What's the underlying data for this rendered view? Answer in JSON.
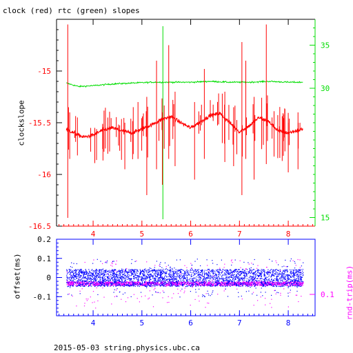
{
  "title": "clock (red) rtc (green) slopes",
  "footer": "2015-05-03 string.physics.ubc.ca",
  "colors": {
    "clock": "#ff0000",
    "rtc": "#00dd00",
    "offset": "#0000ff",
    "rndtrip": "#ff00ff",
    "axis_main": "#000000",
    "bottom_axis": "#0000ff"
  },
  "chart_data": [
    {
      "type": "line",
      "title": "clock (red) rtc (green) slopes",
      "ylabel": "clockslope",
      "xlim": [
        3.25,
        8.55
      ],
      "ylim": [
        -16.5,
        -14.5
      ],
      "y_ticks": [
        -15,
        -15.5,
        -16,
        -16.5
      ],
      "y_tick_labels": [
        "-15",
        "-15.5",
        "-16",
        "-16.5"
      ],
      "x_ticks": [
        4,
        5,
        6,
        7,
        8
      ],
      "x_tick_labels": [
        "4",
        "5",
        "6",
        "7",
        "8"
      ],
      "y2lim": [
        14,
        38
      ],
      "y2_ticks": [
        15,
        30,
        35
      ],
      "y2_tick_labels": [
        "15",
        "30",
        "35"
      ],
      "grid": false,
      "series": [
        {
          "name": "clock",
          "axis": "left",
          "x": [
            3.45,
            3.6,
            3.8,
            4.0,
            4.2,
            4.4,
            4.6,
            4.8,
            5.0,
            5.2,
            5.4,
            5.6,
            5.8,
            6.0,
            6.2,
            6.4,
            6.6,
            6.8,
            7.0,
            7.2,
            7.4,
            7.6,
            7.8,
            8.0,
            8.3
          ],
          "y": [
            -15.56,
            -15.6,
            -15.64,
            -15.62,
            -15.57,
            -15.55,
            -15.58,
            -15.6,
            -15.56,
            -15.52,
            -15.47,
            -15.44,
            -15.5,
            -15.55,
            -15.49,
            -15.43,
            -15.41,
            -15.5,
            -15.59,
            -15.53,
            -15.45,
            -15.49,
            -15.58,
            -15.6,
            -15.56
          ],
          "spikes": [
            {
              "x": 3.48,
              "low": -16.42,
              "high": -14.55
            },
            {
              "x": 3.52,
              "low": -15.85,
              "high": -15.4
            },
            {
              "x": 3.95,
              "low": -15.78,
              "high": -15.55
            },
            {
              "x": 4.3,
              "low": -15.8,
              "high": -15.45
            },
            {
              "x": 4.65,
              "low": -15.95,
              "high": -15.5
            },
            {
              "x": 4.92,
              "low": -15.85,
              "high": -15.3
            },
            {
              "x": 5.1,
              "low": -16.2,
              "high": -15.25
            },
            {
              "x": 5.3,
              "low": -15.95,
              "high": -14.9
            },
            {
              "x": 5.42,
              "low": -16.1,
              "high": -15.4
            },
            {
              "x": 5.55,
              "low": -15.85,
              "high": -14.75
            },
            {
              "x": 5.68,
              "low": -15.92,
              "high": -15.2
            },
            {
              "x": 6.08,
              "low": -16.05,
              "high": -15.3
            },
            {
              "x": 6.28,
              "low": -15.85,
              "high": -14.98
            },
            {
              "x": 6.7,
              "low": -15.88,
              "high": -15.2
            },
            {
              "x": 6.88,
              "low": -15.92,
              "high": -15.35
            },
            {
              "x": 7.05,
              "low": -16.2,
              "high": -14.72
            },
            {
              "x": 7.13,
              "low": -15.85,
              "high": -14.9
            },
            {
              "x": 7.3,
              "low": -16.05,
              "high": -15.25
            },
            {
              "x": 7.55,
              "low": -15.9,
              "high": -14.55
            },
            {
              "x": 7.9,
              "low": -15.82,
              "high": -15.42
            },
            {
              "x": 8.0,
              "low": -15.98,
              "high": -15.5
            },
            {
              "x": 8.2,
              "low": -15.95,
              "high": -15.4
            }
          ]
        },
        {
          "name": "rtc",
          "axis": "right",
          "x": [
            3.45,
            3.7,
            4.0,
            4.4,
            4.8,
            5.2,
            5.6,
            6.0,
            6.4,
            6.8,
            7.2,
            7.6,
            8.0,
            8.3
          ],
          "y": [
            30.6,
            30.2,
            30.3,
            30.5,
            30.6,
            30.7,
            30.7,
            30.7,
            30.8,
            30.7,
            30.7,
            30.8,
            30.7,
            30.7
          ],
          "spikes": [
            {
              "x": 5.43,
              "low": 14.8,
              "high": 37.2
            }
          ]
        }
      ]
    },
    {
      "type": "scatter",
      "ylabel": "offset(ms)",
      "y2label": "rnd-trip(ms)",
      "xlim": [
        3.25,
        8.55
      ],
      "ylim": [
        -0.2,
        0.2
      ],
      "y_ticks": [
        -0.1,
        0,
        0.1,
        0.2
      ],
      "y_tick_labels": [
        "-0.1",
        "0",
        "0.1",
        "0.2"
      ],
      "x_ticks": [
        4,
        5,
        6,
        7,
        8
      ],
      "x_tick_labels": [
        "4",
        "5",
        "6",
        "7",
        "8"
      ],
      "y2_ticks": [
        0.1
      ],
      "y2_tick_labels": [
        "0.1"
      ],
      "grid": false,
      "series": [
        {
          "name": "offset",
          "x_range": [
            3.45,
            8.3
          ],
          "center": 0.0,
          "spread": 0.045,
          "outlier_spread": 0.1
        },
        {
          "name": "rnd-trip",
          "x_range": [
            3.45,
            8.3
          ],
          "center": -0.03,
          "spread": 0.01,
          "outlier_spread": 0.13
        }
      ]
    }
  ]
}
